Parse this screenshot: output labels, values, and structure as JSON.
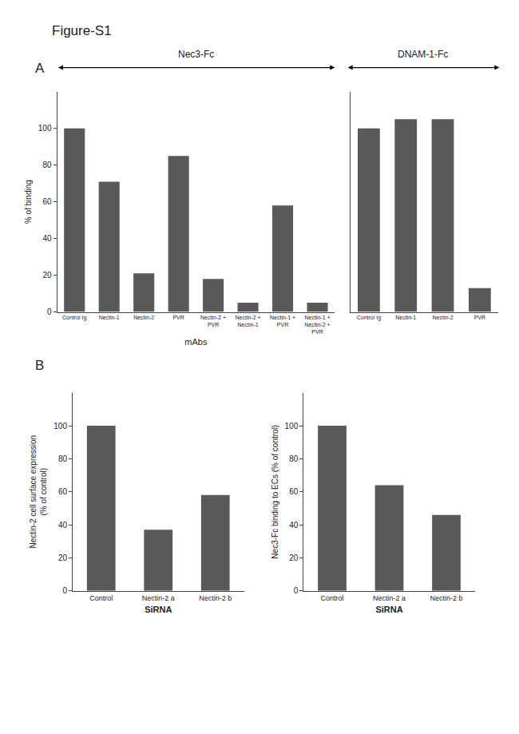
{
  "title": "Figure-S1",
  "chart_data": [
    {
      "type": "bar",
      "title": "Nec3-Fc",
      "annotations": [
        "A"
      ],
      "categories": [
        "Control Ig",
        "Nectin-1",
        "Nectin-2",
        "PVR",
        "Nectin-2 +\nPVR",
        "Nectin-2 +\nNectin-1",
        "Nectin-1 +\nPVR",
        "Nectin-1 +\nNectin-2 +\nPVR"
      ],
      "values": [
        100,
        71,
        21,
        85,
        18,
        5,
        58,
        5
      ],
      "color": "#595959",
      "xlabel": "mAbs",
      "ylabel": "% of binding",
      "ylim": [
        0,
        120
      ],
      "yticks": [
        0,
        20,
        40,
        60,
        80,
        100
      ],
      "grid": false
    },
    {
      "type": "bar",
      "title": "DNAM-1-Fc",
      "categories": [
        "Control Ig",
        "Nectin-1",
        "Nectin-2",
        "PVR"
      ],
      "values": [
        100,
        105,
        105,
        13
      ],
      "color": "#595959",
      "ylim": [
        0,
        120
      ],
      "yticks": [
        0,
        20,
        40,
        60,
        80,
        100
      ],
      "grid": false,
      "tick_labels": "x"
    },
    {
      "type": "bar",
      "annotations": [
        "B"
      ],
      "categories": [
        "Control",
        "Nectin-2 a",
        "Nectin-2 b"
      ],
      "values": [
        100,
        37,
        58
      ],
      "color": "#595959",
      "xlabel": "SiRNA",
      "ylabel": "Nectin-2 cell surface expression\n(% of control)",
      "ylim": [
        0,
        120
      ],
      "yticks": [
        0,
        20,
        40,
        60,
        80,
        100
      ],
      "grid": false
    },
    {
      "type": "bar",
      "categories": [
        "Control",
        "Nectin-2 a",
        "Nectin-2 b"
      ],
      "values": [
        100,
        64,
        46
      ],
      "color": "#595959",
      "xlabel": "SiRNA",
      "ylabel": "Nec3-Fc binding to ECs (% of control)",
      "ylim": [
        0,
        120
      ],
      "yticks": [
        0,
        20,
        40,
        60,
        80,
        100
      ],
      "grid": false
    }
  ]
}
